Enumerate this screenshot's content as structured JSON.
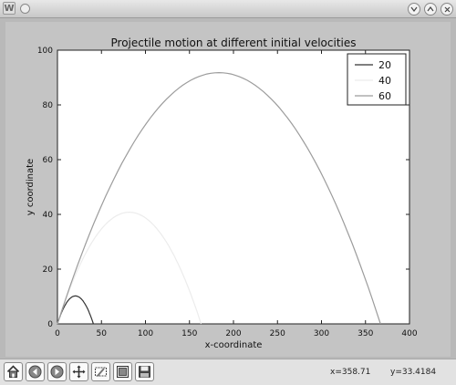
{
  "window": {
    "icon_letter": "W"
  },
  "toolbar": {
    "buttons": [
      {
        "name": "home-button",
        "icon": "home-icon"
      },
      {
        "name": "back-button",
        "icon": "arrow-left-icon"
      },
      {
        "name": "forward-button",
        "icon": "arrow-right-icon"
      },
      {
        "name": "pan-button",
        "icon": "move-icon"
      },
      {
        "name": "zoom-button",
        "icon": "zoom-rect-icon"
      },
      {
        "name": "subplots-button",
        "icon": "subplots-icon"
      },
      {
        "name": "save-button",
        "icon": "floppy-icon"
      }
    ],
    "x_readout": "x=358.71",
    "y_readout": "y=33.4184"
  },
  "chart_data": {
    "type": "line",
    "title": "Projectile motion at different initial velocities",
    "xlabel": "x-coordinate",
    "ylabel": "y coordinate",
    "xlim": [
      0,
      400
    ],
    "ylim": [
      0,
      100
    ],
    "xticks": [
      0,
      50,
      100,
      150,
      200,
      250,
      300,
      350,
      400
    ],
    "yticks": [
      0,
      20,
      40,
      60,
      80,
      100
    ],
    "grid": false,
    "legend_position": "top-right",
    "series": [
      {
        "name": "20",
        "color": "#333333",
        "peak": [
          20.4,
          10.2
        ],
        "range": 40.8
      },
      {
        "name": "40",
        "color": "#ececec",
        "peak": [
          81.6,
          40.8
        ],
        "range": 163.2
      },
      {
        "name": "60",
        "color": "#9c9c9c",
        "peak": [
          183.5,
          91.8
        ],
        "range": 367.0
      }
    ]
  }
}
